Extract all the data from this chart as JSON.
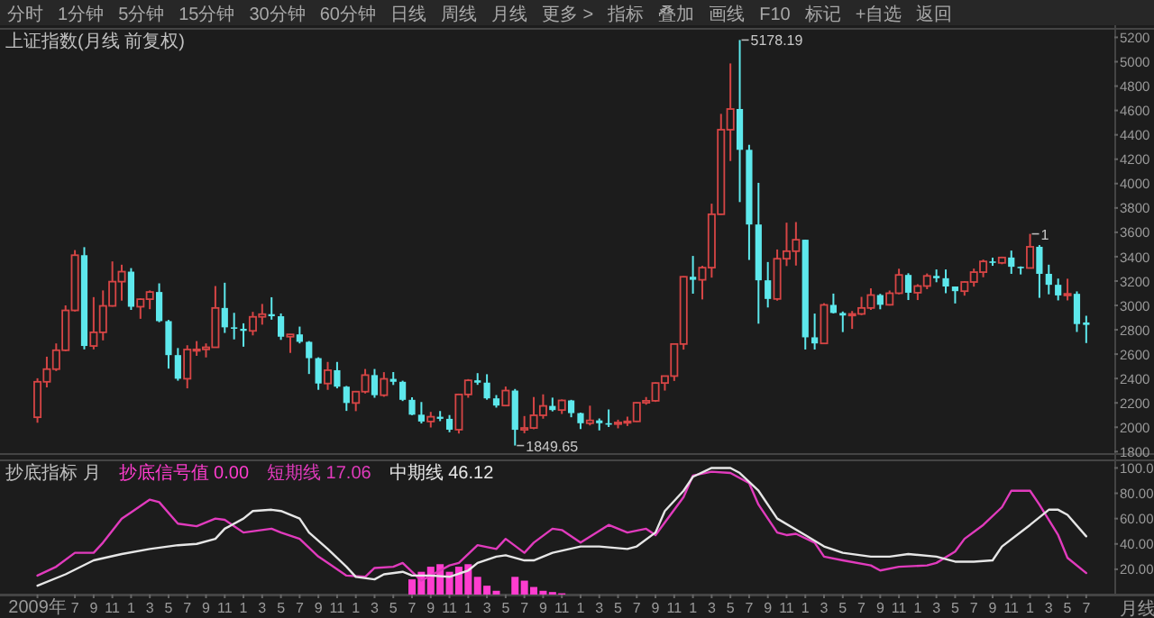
{
  "chart_data": [
    {
      "type": "candlestick",
      "title": "上证指数(月线 前复权)",
      "series": [
        {
          "color": "#d64545",
          "x": [
            "2009-03",
            "2009-04",
            "2009-05",
            "2009-06",
            "2009-07",
            "2009-09",
            "2009-10",
            "2009-11",
            "2009-12",
            "2010-02",
            "2010-03",
            "2010-07",
            "2010-08",
            "2010-09",
            "2010-10",
            "2011-02",
            "2011-03",
            "2011-06",
            "2011-10",
            "2012-01",
            "2012-02",
            "2012-04",
            "2012-09",
            "2012-12",
            "2013-01",
            "2013-05",
            "2013-07",
            "2013-08",
            "2013-09",
            "2013-11",
            "2014-02",
            "2014-05",
            "2014-06",
            "2014-07",
            "2014-08",
            "2014-09",
            "2014-10",
            "2014-11",
            "2014-12",
            "2015-02",
            "2015-03",
            "2015-04",
            "2015-05",
            "2015-10",
            "2015-11",
            "2015-12",
            "2016-03",
            "2016-06",
            "2016-07",
            "2016-08",
            "2016-10",
            "2016-11",
            "2017-01",
            "2017-02",
            "2017-06",
            "2017-07",
            "2017-08",
            "2017-10",
            "2018-01",
            "2018-05"
          ],
          "ohlc": [
            [
              2082,
              2402,
              2037,
              2373
            ],
            [
              2373,
              2579,
              2327,
              2477
            ],
            [
              2477,
              2688,
              2461,
              2632
            ],
            [
              2632,
              3000,
              2624,
              2959
            ],
            [
              2959,
              3454,
              2950,
              3412
            ],
            [
              2667,
              3068,
              2639,
              2779
            ],
            [
              2779,
              3123,
              2713,
              2996
            ],
            [
              2996,
              3361,
              2990,
              3195
            ],
            [
              3195,
              3334,
              3039,
              3277
            ],
            [
              2989,
              3059,
              2890,
              3051
            ],
            [
              3051,
              3123,
              2969,
              3110
            ],
            [
              2398,
              2673,
              2319,
              2638
            ],
            [
              2638,
              2707,
              2586,
              2639
            ],
            [
              2639,
              2688,
              2573,
              2656
            ],
            [
              2656,
              3159,
              2654,
              2979
            ],
            [
              2791,
              2947,
              2754,
              2906
            ],
            [
              2906,
              3012,
              2842,
              2928
            ],
            [
              2743,
              2765,
              2610,
              2762
            ],
            [
              2359,
              2536,
              2307,
              2468
            ],
            [
              2199,
              2298,
              2132,
              2292
            ],
            [
              2292,
              2478,
              2277,
              2428
            ],
            [
              2263,
              2452,
              2250,
              2397
            ],
            [
              2047,
              2126,
              1998,
              2086
            ],
            [
              1980,
              2276,
              1949,
              2269
            ],
            [
              2269,
              2395,
              2242,
              2385
            ],
            [
              2178,
              2334,
              2176,
              2301
            ],
            [
              1979,
              2092,
              1951,
              1994
            ],
            [
              1994,
              2248,
              1984,
              2098
            ],
            [
              2098,
              2270,
              2070,
              2175
            ],
            [
              2141,
              2228,
              2109,
              2220
            ],
            [
              2033,
              2177,
              2015,
              2056
            ],
            [
              2026,
              2062,
              1991,
              2039
            ],
            [
              2039,
              2087,
              2010,
              2048
            ],
            [
              2048,
              2204,
              2044,
              2201
            ],
            [
              2201,
              2248,
              2185,
              2217
            ],
            [
              2217,
              2368,
              2208,
              2363
            ],
            [
              2363,
              2420,
              2301,
              2420
            ],
            [
              2420,
              2683,
              2380,
              2683
            ],
            [
              2683,
              3239,
              2637,
              3235
            ],
            [
              3210,
              3325,
              3049,
              3310
            ],
            [
              3310,
              3835,
              3228,
              3748
            ],
            [
              3748,
              4572,
              3744,
              4442
            ],
            [
              4442,
              4986,
              4185,
              4612
            ],
            [
              3053,
              3459,
              3039,
              3383
            ],
            [
              3383,
              3679,
              3323,
              3445
            ],
            [
              3445,
              3684,
              3327,
              3539
            ],
            [
              2688,
              3018,
              2682,
              3004
            ],
            [
              2917,
              2954,
              2807,
              2930
            ],
            [
              2930,
              3070,
              2920,
              2979
            ],
            [
              2979,
              3140,
              2963,
              3085
            ],
            [
              3005,
              3122,
              2999,
              3100
            ],
            [
              3100,
              3301,
              3091,
              3250
            ],
            [
              3104,
              3174,
              3044,
              3159
            ],
            [
              3159,
              3262,
              3133,
              3242
            ],
            [
              3117,
              3199,
              3080,
              3192
            ],
            [
              3192,
              3302,
              3154,
              3273
            ],
            [
              3273,
              3376,
              3231,
              3361
            ],
            [
              3349,
              3400,
              3338,
              3393
            ],
            [
              3307,
              3587,
              3307,
              3481
            ],
            [
              3082,
              3219,
              3041,
              3095
            ]
          ]
        },
        {
          "color": "#5de8ec",
          "x": [
            "2009-08",
            "2010-01",
            "2010-04",
            "2010-05",
            "2010-06",
            "2010-11",
            "2010-12",
            "2011-01",
            "2011-04",
            "2011-05",
            "2011-07",
            "2011-08",
            "2011-09",
            "2011-11",
            "2011-12",
            "2012-03",
            "2012-05",
            "2012-06",
            "2012-07",
            "2012-08",
            "2012-10",
            "2012-11",
            "2013-02",
            "2013-03",
            "2013-04",
            "2013-06",
            "2013-10",
            "2013-12",
            "2014-01",
            "2014-03",
            "2014-04",
            "2015-01",
            "2015-06",
            "2015-07",
            "2015-08",
            "2015-09",
            "2016-01",
            "2016-02",
            "2016-04",
            "2016-05",
            "2016-09",
            "2016-12",
            "2017-03",
            "2017-04",
            "2017-05",
            "2017-09",
            "2017-11",
            "2017-12",
            "2018-02",
            "2018-03",
            "2018-04",
            "2018-06",
            "2018-07"
          ],
          "ohlc": [
            [
              3412,
              3478,
              2639,
              2667
            ],
            [
              3277,
              3306,
              2963,
              2989
            ],
            [
              3110,
              3181,
              2862,
              2871
            ],
            [
              2871,
              2881,
              2481,
              2592
            ],
            [
              2592,
              2650,
              2382,
              2398
            ],
            [
              2979,
              3186,
              2774,
              2820
            ],
            [
              2820,
              2939,
              2721,
              2808
            ],
            [
              2808,
              2853,
              2661,
              2791
            ],
            [
              2928,
              3067,
              2883,
              2911
            ],
            [
              2911,
              2934,
              2717,
              2743
            ],
            [
              2762,
              2826,
              2688,
              2701
            ],
            [
              2701,
              2707,
              2437,
              2567
            ],
            [
              2567,
              2574,
              2307,
              2359
            ],
            [
              2468,
              2536,
              2319,
              2333
            ],
            [
              2333,
              2339,
              2134,
              2199
            ],
            [
              2428,
              2478,
              2242,
              2263
            ],
            [
              2397,
              2453,
              2347,
              2373
            ],
            [
              2373,
              2382,
              2215,
              2225
            ],
            [
              2225,
              2246,
              2099,
              2103
            ],
            [
              2103,
              2207,
              2031,
              2047
            ],
            [
              2086,
              2133,
              2050,
              2069
            ],
            [
              2069,
              2100,
              1959,
              1980
            ],
            [
              2385,
              2444,
              2348,
              2366
            ],
            [
              2366,
              2435,
              2226,
              2237
            ],
            [
              2237,
              2264,
              2161,
              2178
            ],
            [
              2301,
              2314,
              1849.65,
              1979
            ],
            [
              2175,
              2243,
              2130,
              2141
            ],
            [
              2220,
              2225,
              2082,
              2116
            ],
            [
              2116,
              2120,
              1985,
              2033
            ],
            [
              2056,
              2072,
              1974,
              2033
            ],
            [
              2033,
              2146,
              2002,
              2026
            ],
            [
              3235,
              3406,
              3096,
              3210
            ],
            [
              4612,
              5178.19,
              3848,
              4277
            ],
            [
              4277,
              4318,
              3373,
              3664
            ],
            [
              3664,
              4006,
              2850,
              3206
            ],
            [
              3206,
              3356,
              2983,
              3053
            ],
            [
              3539,
              3539,
              2638,
              2738
            ],
            [
              2738,
              2933,
              2638,
              2688
            ],
            [
              3004,
              3097,
              2934,
              2938
            ],
            [
              2938,
              2950,
              2781,
              2917
            ],
            [
              3085,
              3095,
              2968,
              3005
            ],
            [
              3250,
              3264,
              3044,
              3104
            ],
            [
              3242,
              3295,
              3190,
              3223
            ],
            [
              3223,
              3295,
              3100,
              3155
            ],
            [
              3155,
              3155,
              3016,
              3117
            ],
            [
              3361,
              3392,
              3325,
              3349
            ],
            [
              3393,
              3450,
              3259,
              3317
            ],
            [
              3317,
              3320,
              3254,
              3307
            ],
            [
              3481,
              3495,
              3062,
              3259
            ],
            [
              3259,
              3334,
              3091,
              3169
            ],
            [
              3169,
              3220,
              3041,
              3082
            ],
            [
              3095,
              3115,
              2782,
              2847
            ],
            [
              2860,
              2915,
              2691,
              2840
            ]
          ]
        }
      ],
      "xlim": [
        "2008-11",
        "2018-10"
      ],
      "ylim": [
        1780,
        5270
      ],
      "yticks": [
        1800,
        2000,
        2200,
        2400,
        2600,
        2800,
        3000,
        3200,
        3400,
        3600,
        3800,
        4000,
        4200,
        4400,
        4600,
        4800,
        5000,
        5200
      ],
      "tick_labels": "y",
      "annotations": [
        "分时",
        "1分钟",
        "5分钟",
        "15分钟",
        "30分钟",
        "60分钟",
        "日线",
        "周线",
        "月线",
        "更多 >",
        "指标",
        "叠加",
        "画线",
        "F10",
        "标记",
        "+自选",
        "返回",
        {
          "text": "5178.19",
          "x": "2015-06",
          "y": 5178.19
        },
        {
          "text": "1849.65",
          "x": "2013-06",
          "y": 1849.65
        },
        {
          "text": "1",
          "x": "2018-01",
          "y": 3587
        }
      ]
    },
    {
      "type": "line",
      "title": "抄底指标 月",
      "xlabel": "月线",
      "legend": "top left",
      "series": [
        {
          "type": "bar",
          "name": "抄底信号值 0.00",
          "color": "#ff3dcf",
          "x": [
            "2012-07",
            "2012-08",
            "2012-09",
            "2012-10",
            "2012-11",
            "2012-12",
            "2013-01",
            "2013-02",
            "2013-03",
            "2013-04",
            "2013-06",
            "2013-07",
            "2013-08",
            "2013-09",
            "2013-10",
            "2013-11"
          ],
          "values": [
            12,
            18,
            22,
            24,
            18,
            22,
            24,
            14,
            7,
            3,
            14,
            11,
            6,
            3,
            2,
            1
          ]
        },
        {
          "name": "短期线 17.06",
          "color": "#e13bbd",
          "x": [
            "2009-03",
            "2009-05",
            "2009-07",
            "2009-09",
            "2009-10",
            "2009-12",
            "2010-01",
            "2010-03",
            "2010-04",
            "2010-06",
            "2010-08",
            "2010-10",
            "2010-11",
            "2011-01",
            "2011-04",
            "2011-05",
            "2011-07",
            "2011-09",
            "2011-10",
            "2011-12",
            "2012-02",
            "2012-03",
            "2012-05",
            "2012-06",
            "2012-08",
            "2012-11",
            "2012-12",
            "2013-02",
            "2013-04",
            "2013-05",
            "2013-07",
            "2013-08",
            "2013-10",
            "2013-11",
            "2014-01",
            "2014-04",
            "2014-06",
            "2014-08",
            "2014-09",
            "2014-12",
            "2015-01",
            "2015-03",
            "2015-05",
            "2015-07",
            "2015-08",
            "2015-10",
            "2015-11",
            "2015-12",
            "2016-02",
            "2016-03",
            "2016-05",
            "2016-08",
            "2016-09",
            "2016-11",
            "2017-02",
            "2017-03",
            "2017-05",
            "2017-06",
            "2017-08",
            "2017-10",
            "2017-11",
            "2018-01",
            "2018-02",
            "2018-04",
            "2018-05",
            "2018-07"
          ],
          "values": [
            15,
            22,
            33,
            33,
            41,
            60,
            65,
            75,
            73,
            56,
            54,
            60,
            59,
            49,
            52,
            49,
            44,
            30,
            25,
            15,
            14,
            21,
            22,
            25,
            11,
            23,
            25,
            39,
            36,
            44,
            33,
            41,
            52,
            51,
            41,
            55,
            49,
            52,
            47,
            77,
            94,
            97,
            96,
            88,
            71,
            49,
            47,
            48,
            41,
            30,
            27,
            23,
            19,
            22,
            23,
            25,
            34,
            44,
            55,
            69,
            82,
            82,
            71,
            47,
            29,
            17
          ]
        },
        {
          "name": "中期线 46.12",
          "color": "#e6e6e6",
          "x": [
            "2009-03",
            "2009-06",
            "2009-09",
            "2009-12",
            "2010-03",
            "2010-06",
            "2010-08",
            "2010-10",
            "2010-11",
            "2011-01",
            "2011-02",
            "2011-04",
            "2011-05",
            "2011-07",
            "2011-08",
            "2011-10",
            "2011-12",
            "2012-01",
            "2012-03",
            "2012-04",
            "2012-06",
            "2012-07",
            "2012-09",
            "2012-11",
            "2013-01",
            "2013-02",
            "2013-04",
            "2013-05",
            "2013-07",
            "2013-08",
            "2013-10",
            "2014-01",
            "2014-03",
            "2014-06",
            "2014-07",
            "2014-09",
            "2014-10",
            "2014-12",
            "2015-01",
            "2015-03",
            "2015-05",
            "2015-06",
            "2015-08",
            "2015-10",
            "2016-01",
            "2016-03",
            "2016-05",
            "2016-08",
            "2016-10",
            "2016-12",
            "2017-03",
            "2017-05",
            "2017-07",
            "2017-09",
            "2017-10",
            "2018-01",
            "2018-03",
            "2018-04",
            "2018-05",
            "2018-07"
          ],
          "values": [
            7,
            16,
            27,
            32,
            36,
            39,
            40,
            44,
            52,
            60,
            66,
            67,
            66,
            60,
            49,
            36,
            22,
            14,
            12,
            16,
            18,
            15,
            15,
            14,
            19,
            25,
            30,
            31,
            27,
            27,
            33,
            38,
            38,
            36,
            38,
            49,
            66,
            82,
            93,
            100,
            100,
            96,
            82,
            60,
            47,
            38,
            33,
            30,
            30,
            32,
            30,
            26,
            26,
            27,
            38,
            55,
            67,
            67,
            63,
            46
          ]
        }
      ],
      "xlim": [
        "2008-11",
        "2018-10"
      ],
      "ylim": [
        0,
        106
      ],
      "yticks": [
        {
          "value": 20,
          "label": "20.00"
        },
        {
          "value": 40,
          "label": "40.00"
        },
        {
          "value": 60,
          "label": "60.00"
        },
        {
          "value": 80,
          "label": "80.00"
        },
        {
          "value": 100,
          "label": "100.0"
        }
      ],
      "xticks": [
        {
          "value": "2009-03",
          "label": "2009年"
        },
        {
          "value": "2009-07",
          "label": "7"
        },
        {
          "value": "2009-09",
          "label": "9"
        },
        {
          "value": "2009-11",
          "label": "11"
        },
        {
          "value": "2010-01",
          "label": "1"
        },
        {
          "value": "2010-03",
          "label": "3"
        },
        {
          "value": "2010-05",
          "label": "5"
        },
        {
          "value": "2010-07",
          "label": "7"
        },
        {
          "value": "2010-09",
          "label": "9"
        },
        {
          "value": "2010-11",
          "label": "11"
        },
        {
          "value": "2011-01",
          "label": "1"
        },
        {
          "value": "2011-03",
          "label": "3"
        },
        {
          "value": "2011-05",
          "label": "5"
        },
        {
          "value": "2011-07",
          "label": "7"
        },
        {
          "value": "2011-09",
          "label": "9"
        },
        {
          "value": "2011-11",
          "label": "11"
        },
        {
          "value": "2012-01",
          "label": "1"
        },
        {
          "value": "2012-03",
          "label": "3"
        },
        {
          "value": "2012-05",
          "label": "5"
        },
        {
          "value": "2012-07",
          "label": "7"
        },
        {
          "value": "2012-09",
          "label": "9"
        },
        {
          "value": "2012-11",
          "label": "11"
        },
        {
          "value": "2013-01",
          "label": "1"
        },
        {
          "value": "2013-03",
          "label": "3"
        },
        {
          "value": "2013-05",
          "label": "5"
        },
        {
          "value": "2013-07",
          "label": "7"
        },
        {
          "value": "2013-09",
          "label": "9"
        },
        {
          "value": "2013-11",
          "label": "11"
        },
        {
          "value": "2014-01",
          "label": "1"
        },
        {
          "value": "2014-03",
          "label": "3"
        },
        {
          "value": "2014-05",
          "label": "5"
        },
        {
          "value": "2014-07",
          "label": "7"
        },
        {
          "value": "2014-09",
          "label": "9"
        },
        {
          "value": "2014-11",
          "label": "11"
        },
        {
          "value": "2015-01",
          "label": "1"
        },
        {
          "value": "2015-03",
          "label": "3"
        },
        {
          "value": "2015-05",
          "label": "5"
        },
        {
          "value": "2015-07",
          "label": "7"
        },
        {
          "value": "2015-09",
          "label": "9"
        },
        {
          "value": "2015-11",
          "label": "11"
        },
        {
          "value": "2016-01",
          "label": "1"
        },
        {
          "value": "2016-03",
          "label": "3"
        },
        {
          "value": "2016-05",
          "label": "5"
        },
        {
          "value": "2016-07",
          "label": "7"
        },
        {
          "value": "2016-09",
          "label": "9"
        },
        {
          "value": "2016-11",
          "label": "11"
        },
        {
          "value": "2017-01",
          "label": "1"
        },
        {
          "value": "2017-03",
          "label": "3"
        },
        {
          "value": "2017-05",
          "label": "5"
        },
        {
          "value": "2017-07",
          "label": "7"
        },
        {
          "value": "2017-09",
          "label": "9"
        },
        {
          "value": "2017-11",
          "label": "11"
        },
        {
          "value": "2018-01",
          "label": "1"
        },
        {
          "value": "2018-03",
          "label": "3"
        },
        {
          "value": "2018-05",
          "label": "5"
        },
        {
          "value": "2018-07",
          "label": "7"
        }
      ]
    }
  ]
}
